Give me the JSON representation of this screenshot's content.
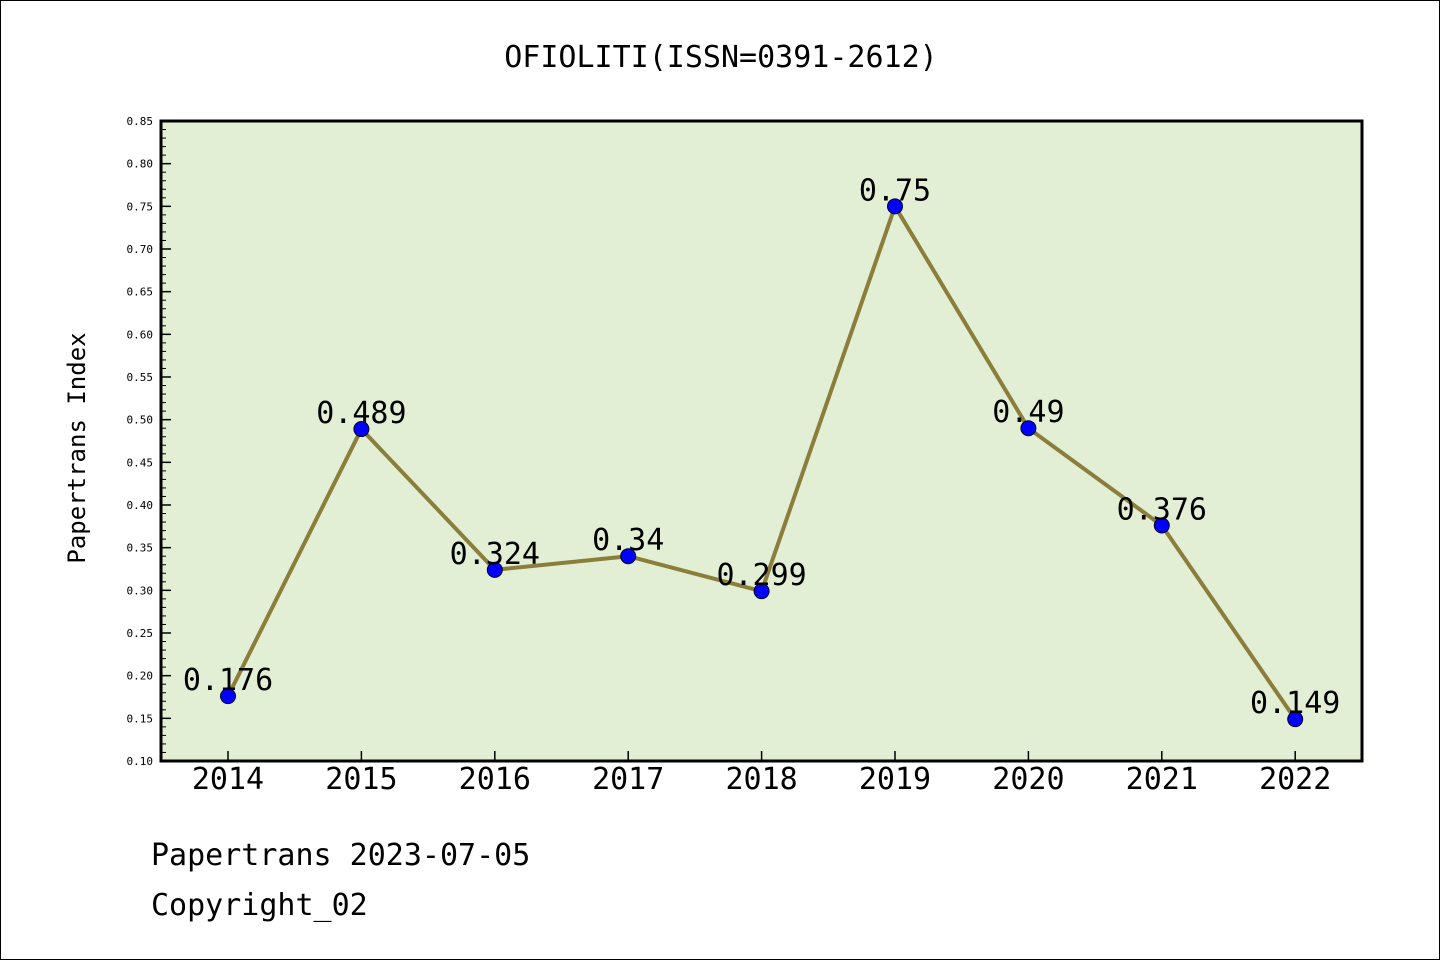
{
  "chart_data": {
    "type": "line",
    "title": "OFIOLITI(ISSN=0391-2612)",
    "ylabel": "Papertrans Index",
    "xlabel": "",
    "categories": [
      "2014",
      "2015",
      "2016",
      "2017",
      "2018",
      "2019",
      "2020",
      "2021",
      "2022"
    ],
    "series": [
      {
        "values": [
          0.176,
          0.489,
          0.324,
          0.34,
          0.299,
          0.75,
          0.49,
          0.376,
          0.149
        ],
        "labels": [
          "0.176",
          "0.489",
          "0.324",
          "0.34",
          "0.299",
          "0.75",
          "0.49",
          "0.376",
          "0.149"
        ]
      }
    ],
    "ylim": [
      0.1,
      0.85
    ],
    "yticks": [
      "0.10",
      "0.15",
      "0.20",
      "0.25",
      "0.30",
      "0.35",
      "0.40",
      "0.45",
      "0.50",
      "0.55",
      "0.60",
      "0.65",
      "0.70",
      "0.75",
      "0.80",
      "0.85"
    ],
    "grid": false,
    "colors": {
      "plot_bg": "#e2efd5",
      "line": "#8b7d3a",
      "marker": "#0000ff"
    }
  },
  "footer": {
    "line1": "Papertrans 2023-07-05",
    "line2": "Copyright_02"
  }
}
